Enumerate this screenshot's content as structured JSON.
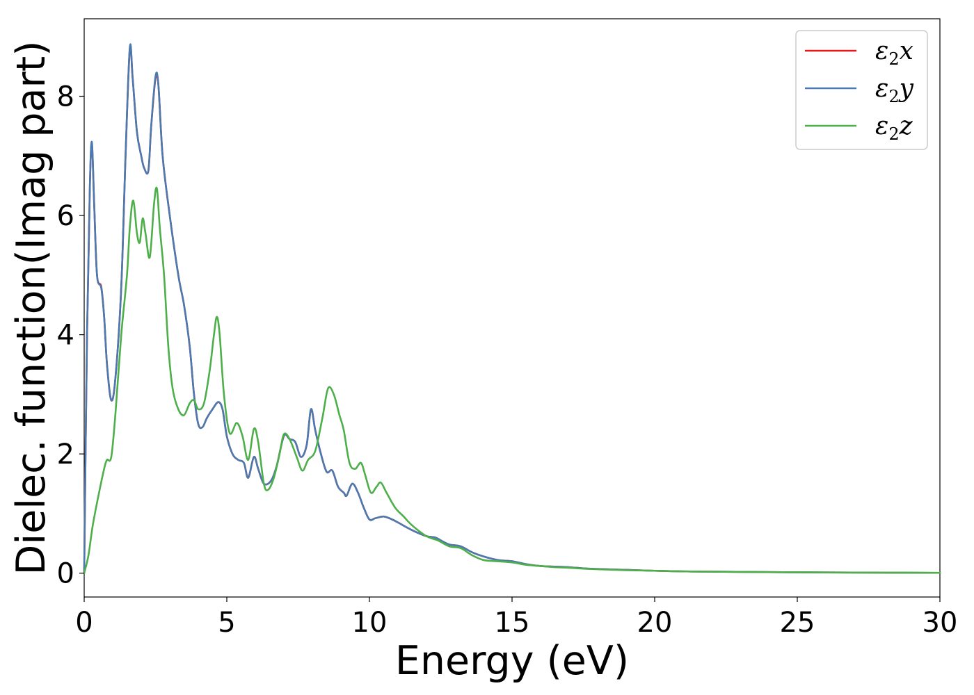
{
  "chart_data": {
    "type": "line",
    "title": "",
    "xlabel": "Energy (eV)",
    "ylabel": "Dielec. function(Imag part)",
    "xlim": [
      0,
      30
    ],
    "ylim": [
      -0.4,
      9.3
    ],
    "xticks": [
      0,
      5,
      10,
      15,
      20,
      25,
      30
    ],
    "yticks": [
      0,
      2,
      4,
      6,
      8
    ],
    "grid": false,
    "legend_position": "top-right",
    "series": [
      {
        "name": "ε2x",
        "label_base": "ε",
        "label_sub": "2",
        "label_suffix": "x",
        "color": "#e41a1c",
        "points": [
          [
            0,
            0
          ],
          [
            0.1,
            4.0
          ],
          [
            0.2,
            6.5
          ],
          [
            0.27,
            7.2
          ],
          [
            0.35,
            6.2
          ],
          [
            0.45,
            5.0
          ],
          [
            0.6,
            4.8
          ],
          [
            0.7,
            4.3
          ],
          [
            0.8,
            3.5
          ],
          [
            0.95,
            2.9
          ],
          [
            1.1,
            3.3
          ],
          [
            1.3,
            4.8
          ],
          [
            1.45,
            7.0
          ],
          [
            1.6,
            8.8
          ],
          [
            1.7,
            8.3
          ],
          [
            1.85,
            7.4
          ],
          [
            2.0,
            7.0
          ],
          [
            2.1,
            6.8
          ],
          [
            2.25,
            6.75
          ],
          [
            2.35,
            7.5
          ],
          [
            2.5,
            8.3
          ],
          [
            2.6,
            8.2
          ],
          [
            2.75,
            7.0
          ],
          [
            3.0,
            6.0
          ],
          [
            3.3,
            5.0
          ],
          [
            3.5,
            4.5
          ],
          [
            3.7,
            3.8
          ],
          [
            3.85,
            3.0
          ],
          [
            4.0,
            2.5
          ],
          [
            4.15,
            2.45
          ],
          [
            4.3,
            2.6
          ],
          [
            4.5,
            2.75
          ],
          [
            4.7,
            2.87
          ],
          [
            4.85,
            2.75
          ],
          [
            5.0,
            2.3
          ],
          [
            5.2,
            2.0
          ],
          [
            5.4,
            1.9
          ],
          [
            5.6,
            1.85
          ],
          [
            5.75,
            1.6
          ],
          [
            5.95,
            1.95
          ],
          [
            6.1,
            1.75
          ],
          [
            6.3,
            1.5
          ],
          [
            6.55,
            1.55
          ],
          [
            6.75,
            1.8
          ],
          [
            7.0,
            2.3
          ],
          [
            7.2,
            2.25
          ],
          [
            7.4,
            2.2
          ],
          [
            7.6,
            1.95
          ],
          [
            7.8,
            2.15
          ],
          [
            7.95,
            2.75
          ],
          [
            8.1,
            2.4
          ],
          [
            8.3,
            2.0
          ],
          [
            8.5,
            1.7
          ],
          [
            8.7,
            1.72
          ],
          [
            8.9,
            1.45
          ],
          [
            9.1,
            1.35
          ],
          [
            9.2,
            1.3
          ],
          [
            9.4,
            1.5
          ],
          [
            9.6,
            1.35
          ],
          [
            9.8,
            1.1
          ],
          [
            10.0,
            0.9
          ],
          [
            10.2,
            0.92
          ],
          [
            10.5,
            0.95
          ],
          [
            10.8,
            0.9
          ],
          [
            11.0,
            0.85
          ],
          [
            11.5,
            0.72
          ],
          [
            12.0,
            0.62
          ],
          [
            12.3,
            0.6
          ],
          [
            12.5,
            0.55
          ],
          [
            12.8,
            0.48
          ],
          [
            13.2,
            0.45
          ],
          [
            13.6,
            0.35
          ],
          [
            14.0,
            0.28
          ],
          [
            14.5,
            0.22
          ],
          [
            15.0,
            0.2
          ],
          [
            15.5,
            0.15
          ],
          [
            16.0,
            0.12
          ],
          [
            16.5,
            0.11
          ],
          [
            17.0,
            0.1
          ],
          [
            17.5,
            0.08
          ],
          [
            18.0,
            0.07
          ],
          [
            19.0,
            0.055
          ],
          [
            20.0,
            0.04
          ],
          [
            21.0,
            0.03
          ],
          [
            22.0,
            0.025
          ],
          [
            24.0,
            0.018
          ],
          [
            26.0,
            0.012
          ],
          [
            28.0,
            0.008
          ],
          [
            30.0,
            0.005
          ]
        ]
      },
      {
        "name": "ε2y",
        "label_base": "ε",
        "label_sub": "2",
        "label_suffix": "y",
        "color": "#4a7ab0",
        "points": [
          [
            0,
            0
          ],
          [
            0.1,
            4.0
          ],
          [
            0.2,
            6.5
          ],
          [
            0.27,
            7.23
          ],
          [
            0.35,
            6.2
          ],
          [
            0.45,
            5.0
          ],
          [
            0.6,
            4.78
          ],
          [
            0.7,
            4.3
          ],
          [
            0.8,
            3.5
          ],
          [
            0.95,
            2.9
          ],
          [
            1.1,
            3.3
          ],
          [
            1.3,
            4.8
          ],
          [
            1.45,
            7.0
          ],
          [
            1.6,
            8.82
          ],
          [
            1.7,
            8.3
          ],
          [
            1.85,
            7.4
          ],
          [
            2.0,
            7.0
          ],
          [
            2.1,
            6.8
          ],
          [
            2.25,
            6.75
          ],
          [
            2.35,
            7.5
          ],
          [
            2.5,
            8.33
          ],
          [
            2.6,
            8.2
          ],
          [
            2.75,
            7.0
          ],
          [
            3.0,
            6.0
          ],
          [
            3.3,
            5.0
          ],
          [
            3.5,
            4.5
          ],
          [
            3.7,
            3.8
          ],
          [
            3.85,
            3.0
          ],
          [
            4.0,
            2.5
          ],
          [
            4.15,
            2.45
          ],
          [
            4.3,
            2.6
          ],
          [
            4.5,
            2.75
          ],
          [
            4.7,
            2.87
          ],
          [
            4.85,
            2.75
          ],
          [
            5.0,
            2.3
          ],
          [
            5.2,
            2.0
          ],
          [
            5.4,
            1.9
          ],
          [
            5.6,
            1.85
          ],
          [
            5.75,
            1.6
          ],
          [
            5.95,
            1.95
          ],
          [
            6.1,
            1.75
          ],
          [
            6.3,
            1.5
          ],
          [
            6.55,
            1.55
          ],
          [
            6.75,
            1.8
          ],
          [
            7.0,
            2.3
          ],
          [
            7.2,
            2.25
          ],
          [
            7.4,
            2.2
          ],
          [
            7.6,
            1.95
          ],
          [
            7.8,
            2.15
          ],
          [
            7.95,
            2.75
          ],
          [
            8.1,
            2.4
          ],
          [
            8.3,
            2.0
          ],
          [
            8.5,
            1.7
          ],
          [
            8.7,
            1.72
          ],
          [
            8.9,
            1.45
          ],
          [
            9.1,
            1.35
          ],
          [
            9.2,
            1.3
          ],
          [
            9.4,
            1.5
          ],
          [
            9.6,
            1.35
          ],
          [
            9.8,
            1.1
          ],
          [
            10.0,
            0.9
          ],
          [
            10.2,
            0.92
          ],
          [
            10.5,
            0.95
          ],
          [
            10.8,
            0.9
          ],
          [
            11.0,
            0.85
          ],
          [
            11.5,
            0.72
          ],
          [
            12.0,
            0.62
          ],
          [
            12.3,
            0.6
          ],
          [
            12.5,
            0.55
          ],
          [
            12.8,
            0.48
          ],
          [
            13.2,
            0.45
          ],
          [
            13.6,
            0.35
          ],
          [
            14.0,
            0.28
          ],
          [
            14.5,
            0.22
          ],
          [
            15.0,
            0.2
          ],
          [
            15.5,
            0.15
          ],
          [
            16.0,
            0.12
          ],
          [
            16.5,
            0.11
          ],
          [
            17.0,
            0.1
          ],
          [
            17.5,
            0.08
          ],
          [
            18.0,
            0.07
          ],
          [
            19.0,
            0.055
          ],
          [
            20.0,
            0.04
          ],
          [
            21.0,
            0.03
          ],
          [
            22.0,
            0.025
          ],
          [
            24.0,
            0.018
          ],
          [
            26.0,
            0.012
          ],
          [
            28.0,
            0.008
          ],
          [
            30.0,
            0.005
          ]
        ]
      },
      {
        "name": "ε2z",
        "label_base": "ε",
        "label_sub": "2",
        "label_suffix": "z",
        "color": "#4daf4a",
        "points": [
          [
            0,
            0
          ],
          [
            0.15,
            0.3
          ],
          [
            0.3,
            0.8
          ],
          [
            0.5,
            1.3
          ],
          [
            0.7,
            1.75
          ],
          [
            0.8,
            1.9
          ],
          [
            0.95,
            1.95
          ],
          [
            1.1,
            2.7
          ],
          [
            1.3,
            4.0
          ],
          [
            1.5,
            5.0
          ],
          [
            1.6,
            5.8
          ],
          [
            1.72,
            6.25
          ],
          [
            1.85,
            5.7
          ],
          [
            1.95,
            5.55
          ],
          [
            2.05,
            5.95
          ],
          [
            2.15,
            5.7
          ],
          [
            2.3,
            5.3
          ],
          [
            2.45,
            6.2
          ],
          [
            2.55,
            6.45
          ],
          [
            2.65,
            5.8
          ],
          [
            2.8,
            5.0
          ],
          [
            2.95,
            3.8
          ],
          [
            3.1,
            3.1
          ],
          [
            3.3,
            2.75
          ],
          [
            3.5,
            2.65
          ],
          [
            3.7,
            2.85
          ],
          [
            3.85,
            2.9
          ],
          [
            4.0,
            2.75
          ],
          [
            4.2,
            2.85
          ],
          [
            4.4,
            3.4
          ],
          [
            4.55,
            4.0
          ],
          [
            4.65,
            4.3
          ],
          [
            4.75,
            4.0
          ],
          [
            4.9,
            3.0
          ],
          [
            5.1,
            2.35
          ],
          [
            5.35,
            2.52
          ],
          [
            5.55,
            2.3
          ],
          [
            5.75,
            1.9
          ],
          [
            5.95,
            2.42
          ],
          [
            6.1,
            2.2
          ],
          [
            6.3,
            1.5
          ],
          [
            6.45,
            1.4
          ],
          [
            6.65,
            1.6
          ],
          [
            6.85,
            2.0
          ],
          [
            7.0,
            2.33
          ],
          [
            7.2,
            2.25
          ],
          [
            7.45,
            1.95
          ],
          [
            7.65,
            1.72
          ],
          [
            7.85,
            1.9
          ],
          [
            8.1,
            2.05
          ],
          [
            8.35,
            2.6
          ],
          [
            8.55,
            3.1
          ],
          [
            8.75,
            3.0
          ],
          [
            8.95,
            2.65
          ],
          [
            9.1,
            2.4
          ],
          [
            9.3,
            1.85
          ],
          [
            9.5,
            1.75
          ],
          [
            9.7,
            1.85
          ],
          [
            9.85,
            1.65
          ],
          [
            10.05,
            1.35
          ],
          [
            10.25,
            1.45
          ],
          [
            10.4,
            1.52
          ],
          [
            10.6,
            1.35
          ],
          [
            10.9,
            1.1
          ],
          [
            11.2,
            0.95
          ],
          [
            11.5,
            0.8
          ],
          [
            12.0,
            0.62
          ],
          [
            12.4,
            0.55
          ],
          [
            12.8,
            0.45
          ],
          [
            13.2,
            0.42
          ],
          [
            13.6,
            0.3
          ],
          [
            14.0,
            0.22
          ],
          [
            14.5,
            0.2
          ],
          [
            15.0,
            0.18
          ],
          [
            15.5,
            0.14
          ],
          [
            16.0,
            0.12
          ],
          [
            16.5,
            0.1
          ],
          [
            17.0,
            0.09
          ],
          [
            17.5,
            0.075
          ],
          [
            18.0,
            0.065
          ],
          [
            19.0,
            0.05
          ],
          [
            20.0,
            0.04
          ],
          [
            21.0,
            0.03
          ],
          [
            22.0,
            0.025
          ],
          [
            24.0,
            0.018
          ],
          [
            26.0,
            0.012
          ],
          [
            28.0,
            0.008
          ],
          [
            30.0,
            0.005
          ]
        ]
      }
    ]
  }
}
